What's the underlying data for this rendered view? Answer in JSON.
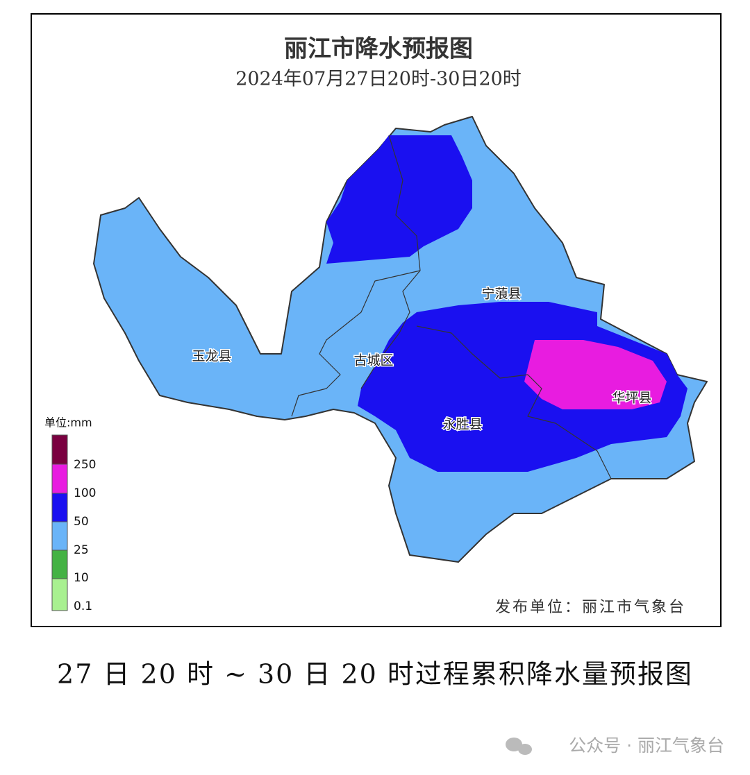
{
  "map": {
    "title": "丽江市降水预报图",
    "subtitle": "2024年07月27日20时-30日20时",
    "regions": [
      "宁蒗县",
      "玉龙县",
      "古城区",
      "华坪县",
      "永胜县"
    ],
    "legend": {
      "unit": "单位:mm",
      "labels": [
        "250",
        "100",
        "50",
        "25",
        "10",
        "0.1"
      ]
    },
    "publisher": "发布单位：丽江市气象台"
  },
  "caption": "27 日 20 时 ~ 30 日 20 时过程累积降水量预报图",
  "watermark": "公众号 · 丽江气象台"
}
